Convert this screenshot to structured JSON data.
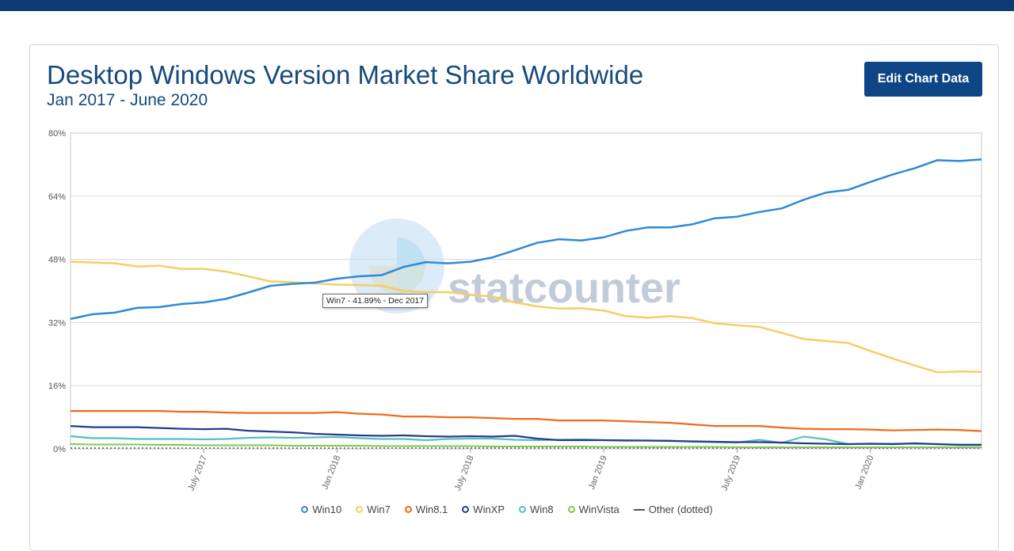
{
  "page": {
    "title": "Desktop Windows Version Market Share Worldwide",
    "subtitle": "Jan 2017 - June 2020",
    "edit_button": "Edit Chart Data",
    "watermark": "statcounter",
    "tooltip": "Win7 - 41.89% - Dec 2017"
  },
  "colors": {
    "header_bar": "#0e3a72",
    "title": "#164a7c",
    "button": "#0e4584"
  },
  "chart_data": {
    "type": "line",
    "x_axis_labels": [
      {
        "label": "July 2017",
        "index": 6
      },
      {
        "label": "Jan 2018",
        "index": 12
      },
      {
        "label": "July 2018",
        "index": 18
      },
      {
        "label": "Jan 2019",
        "index": 24
      },
      {
        "label": "July 2019",
        "index": 30
      },
      {
        "label": "Jan 2020",
        "index": 36
      }
    ],
    "y_ticks": [
      "0%",
      "16%",
      "32%",
      "48%",
      "64%",
      "80%"
    ],
    "ylim": [
      0,
      80
    ],
    "grid": true,
    "legend_position": "bottom",
    "series": [
      {
        "name": "Win10",
        "color": "#2e8ad8",
        "width": 2.5,
        "dash": "",
        "values": [
          32.9,
          34.1,
          34.5,
          35.7,
          35.9,
          36.7,
          37.1,
          38.0,
          39.6,
          41.3,
          41.8,
          42.1,
          43.1,
          43.7,
          44.0,
          46.1,
          47.3,
          47.0,
          47.4,
          48.5,
          50.3,
          52.2,
          53.1,
          52.8,
          53.6,
          55.2,
          56.1,
          56.1,
          56.9,
          58.4,
          58.8,
          60.0,
          60.9,
          63.1,
          64.9,
          65.6,
          67.6,
          69.5,
          71.1,
          73.1,
          72.9,
          73.3
        ]
      },
      {
        "name": "Win7",
        "color": "#f3cf62",
        "width": 2.5,
        "dash": "",
        "values": [
          47.4,
          47.2,
          47.0,
          46.2,
          46.4,
          45.6,
          45.6,
          44.9,
          43.7,
          42.4,
          42.2,
          41.9,
          41.6,
          41.5,
          41.3,
          40.0,
          39.7,
          39.7,
          39.0,
          38.6,
          37.1,
          36.1,
          35.5,
          35.6,
          35.0,
          33.6,
          33.2,
          33.6,
          33.1,
          31.8,
          31.3,
          30.9,
          29.4,
          27.8,
          27.3,
          26.8,
          24.8,
          22.9,
          21.1,
          19.4,
          19.6,
          19.5
        ]
      },
      {
        "name": "Win8.1",
        "color": "#f06b1a",
        "width": 2.2,
        "dash": "",
        "values": [
          9.6,
          9.6,
          9.6,
          9.6,
          9.6,
          9.4,
          9.4,
          9.2,
          9.1,
          9.1,
          9.1,
          9.1,
          9.3,
          8.9,
          8.7,
          8.2,
          8.2,
          8.0,
          8.0,
          7.8,
          7.6,
          7.6,
          7.2,
          7.2,
          7.2,
          7.0,
          6.8,
          6.6,
          6.2,
          5.8,
          5.8,
          5.8,
          5.4,
          5.1,
          5.0,
          5.0,
          4.9,
          4.7,
          4.8,
          4.9,
          4.8,
          4.5
        ]
      },
      {
        "name": "WinXP",
        "color": "#243d8a",
        "width": 2.2,
        "dash": "",
        "values": [
          5.8,
          5.5,
          5.5,
          5.5,
          5.3,
          5.1,
          5.0,
          5.1,
          4.6,
          4.4,
          4.2,
          3.8,
          3.6,
          3.4,
          3.3,
          3.4,
          3.2,
          3.1,
          3.2,
          3.1,
          3.3,
          2.6,
          2.2,
          2.2,
          2.2,
          2.1,
          2.1,
          2.0,
          1.9,
          1.8,
          1.7,
          1.7,
          1.6,
          1.4,
          1.3,
          1.2,
          1.3,
          1.2,
          1.4,
          1.2,
          1.0,
          1.0
        ]
      },
      {
        "name": "Win8",
        "color": "#56bfbf",
        "width": 2.2,
        "dash": "",
        "values": [
          3.2,
          2.7,
          2.7,
          2.5,
          2.5,
          2.5,
          2.4,
          2.5,
          2.8,
          2.9,
          2.8,
          2.9,
          3.0,
          2.7,
          2.5,
          2.5,
          2.2,
          2.5,
          2.6,
          2.6,
          2.3,
          2.2,
          2.3,
          2.4,
          2.2,
          2.2,
          2.1,
          2.1,
          1.8,
          1.7,
          1.6,
          2.3,
          1.5,
          3.1,
          2.4,
          1.2,
          1.3,
          1.3,
          1.3,
          1.2,
          1.1,
          1.1
        ]
      },
      {
        "name": "WinVista",
        "color": "#7fc94b",
        "width": 2.0,
        "dash": "",
        "values": [
          1.2,
          1.1,
          1.1,
          1.1,
          1.0,
          1.0,
          0.9,
          0.9,
          0.9,
          0.9,
          0.8,
          0.8,
          0.8,
          0.8,
          0.7,
          0.7,
          0.7,
          0.7,
          0.7,
          0.6,
          0.6,
          0.6,
          0.6,
          0.6,
          0.5,
          0.5,
          0.5,
          0.5,
          0.5,
          0.5,
          0.4,
          0.4,
          0.4,
          0.4,
          0.4,
          0.4,
          0.4,
          0.4,
          0.4,
          0.4,
          0.4,
          0.4
        ]
      },
      {
        "name": "Other (dotted)",
        "color": "#555555",
        "width": 1.5,
        "dash": "2,3",
        "values": [
          0.2,
          0.2,
          0.2,
          0.2,
          0.2,
          0.2,
          0.2,
          0.2,
          0.2,
          0.2,
          0.2,
          0.2,
          0.2,
          0.2,
          0.2,
          0.2,
          0.2,
          0.2,
          0.2,
          0.2,
          0.2,
          0.2,
          0.2,
          0.2,
          0.2,
          0.2,
          0.2,
          0.2,
          0.2,
          0.2,
          0.2,
          0.2,
          0.2,
          0.2,
          0.2,
          0.2,
          0.2,
          0.2,
          0.2,
          0.2,
          0.2,
          0.2
        ]
      }
    ]
  }
}
